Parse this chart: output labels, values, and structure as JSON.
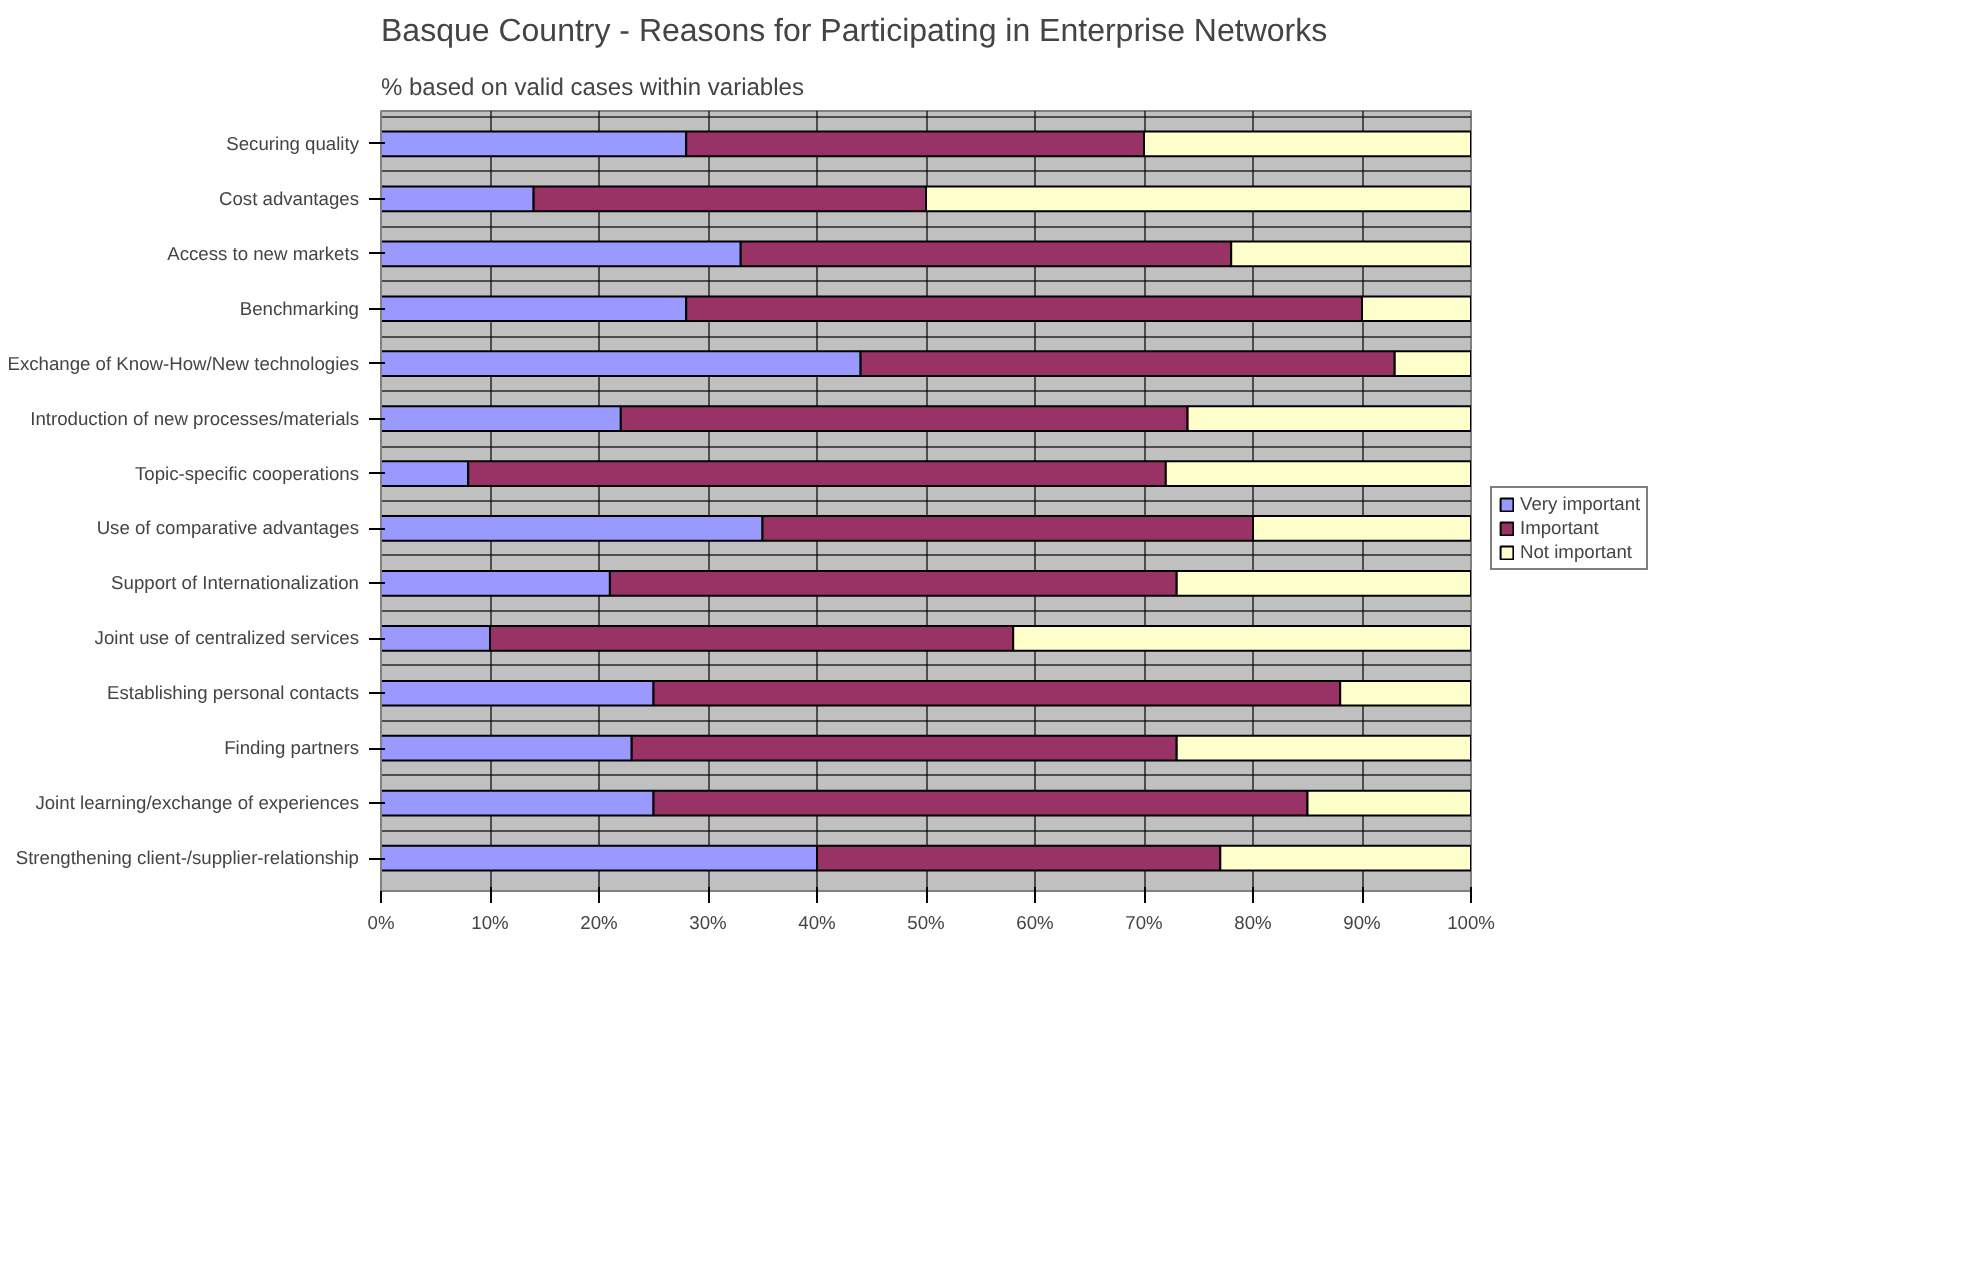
{
  "chart_data": {
    "type": "bar",
    "orientation": "horizontal",
    "stacked": true,
    "title": "Basque Country - Reasons for Participating in Enterprise Networks",
    "subtitle": "% based on valid cases within variables",
    "categories": [
      "Securing quality",
      "Cost advantages",
      "Access to new markets",
      "Benchmarking",
      "Exchange of Know-How/New technologies",
      "Introduction of new processes/materials",
      "Topic-specific cooperations",
      "Use of comparative advantages",
      "Support of Internationalization",
      "Joint use of centralized services",
      "Establishing personal contacts",
      "Finding partners",
      "Joint learning/exchange of experiences",
      "Strengthening client-/supplier-relationship"
    ],
    "series": [
      {
        "name": "Very important",
        "color": "#9999ff",
        "values": [
          28,
          14,
          33,
          28,
          44,
          22,
          8,
          35,
          21,
          10,
          25,
          23,
          25,
          40
        ]
      },
      {
        "name": "Important",
        "color": "#993366",
        "values": [
          42,
          36,
          45,
          62,
          49,
          52,
          64,
          45,
          52,
          48,
          63,
          50,
          60,
          37
        ]
      },
      {
        "name": "Not important",
        "color": "#ffffcc",
        "values": [
          30,
          50,
          22,
          10,
          7,
          26,
          28,
          20,
          27,
          42,
          12,
          27,
          15,
          23
        ]
      }
    ],
    "xlim": [
      0,
      100
    ],
    "xticks": [
      {
        "value": 0,
        "label": "0%"
      },
      {
        "value": 10,
        "label": "10%"
      },
      {
        "value": 20,
        "label": "20%"
      },
      {
        "value": 30,
        "label": "30%"
      },
      {
        "value": 40,
        "label": "40%"
      },
      {
        "value": 50,
        "label": "50%"
      },
      {
        "value": 60,
        "label": "60%"
      },
      {
        "value": 70,
        "label": "70%"
      },
      {
        "value": 80,
        "label": "80%"
      },
      {
        "value": 90,
        "label": "90%"
      },
      {
        "value": 100,
        "label": "100%"
      }
    ],
    "grid": true,
    "legend": "right"
  }
}
